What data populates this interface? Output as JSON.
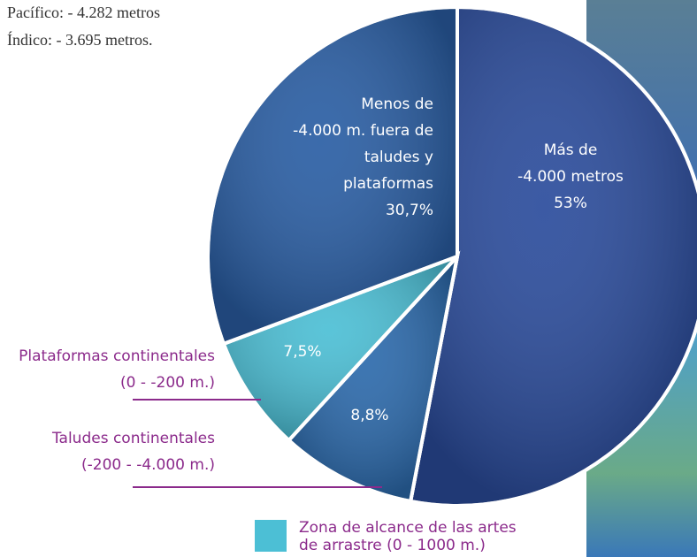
{
  "chart_data": {
    "type": "pie",
    "notes": [
      "Pacífico: - 4.282 metros",
      "Índico: - 3.695 metros."
    ],
    "labels": [
      [
        "Más de",
        "-4.000 metros"
      ],
      [],
      [],
      [
        "Menos de",
        "-4.000 m. fuera de",
        "taludes y",
        "plataformas"
      ]
    ],
    "values": [
      53,
      8.8,
      7.5,
      30.7
    ],
    "value_labels": [
      "53%",
      "8,8%",
      "7,5%",
      "30,7%"
    ],
    "colors": [
      "#2b4c9c",
      "#2c6aac",
      "#4cbfd5",
      "#2a5ea4"
    ],
    "annotations": [
      [
        "Plataformas continentales",
        "(0 - -200 m.)"
      ],
      [
        "Taludes continentales",
        "(-200 - -4.000 m.)"
      ]
    ],
    "legend": {
      "color": "#4cbfd5",
      "lines": [
        "Zona de alcance de las artes",
        "de arrastre (0 - 1000 m.)"
      ]
    }
  }
}
